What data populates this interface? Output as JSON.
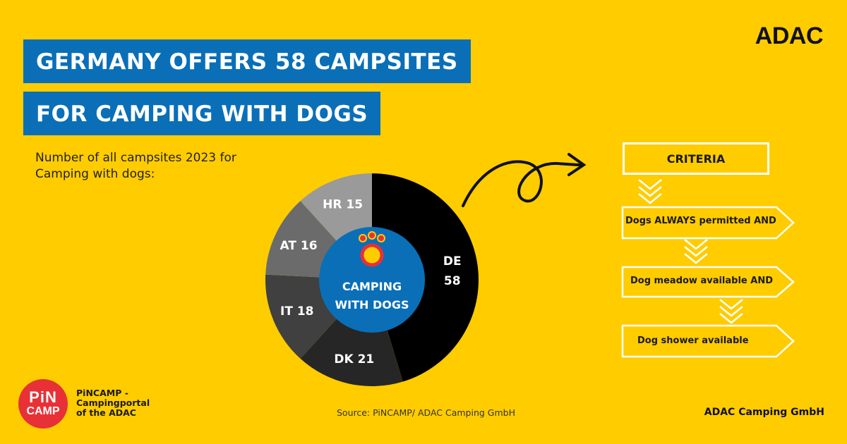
{
  "brand": "ADAC",
  "title_line1": "GERMANY OFFERS 58 CAMPSITES",
  "title_line2": "FOR CAMPING WITH DOGS",
  "subtitle": "Number of all campsites 2023 for Camping with dogs:",
  "center_label_line1": "CAMPING",
  "center_label_line2": "WITH DOGS",
  "colors": {
    "background": "#FFCC00",
    "title_bar": "#0A6FB7",
    "center_circle": "#0A6FB7",
    "paw": "#E73137"
  },
  "chart_data": {
    "type": "pie",
    "subtype": "donut",
    "slices": [
      {
        "label": "DE",
        "value": 58,
        "color": "#000000"
      },
      {
        "label": "DK",
        "value": 21,
        "color": "#262626"
      },
      {
        "label": "IT",
        "value": 18,
        "color": "#404040"
      },
      {
        "label": "AT",
        "value": 16,
        "color": "#6b6b6b"
      },
      {
        "label": "HR",
        "value": 15,
        "color": "#9a9a9a"
      }
    ]
  },
  "criteria": {
    "title": "CRITERIA",
    "items": [
      "Dogs ALWAYS permitted AND",
      "Dog meadow available AND",
      "Dog shower available"
    ]
  },
  "pincamp": {
    "logo_line1": "PiN",
    "logo_line2": "CAMP",
    "text": "PiNCAMP -\nCampingportal\nof the ADAC"
  },
  "source": "Source: PiNCAMP/ ADAC Camping GmbH",
  "footer_right": "ADAC Camping GmbH"
}
